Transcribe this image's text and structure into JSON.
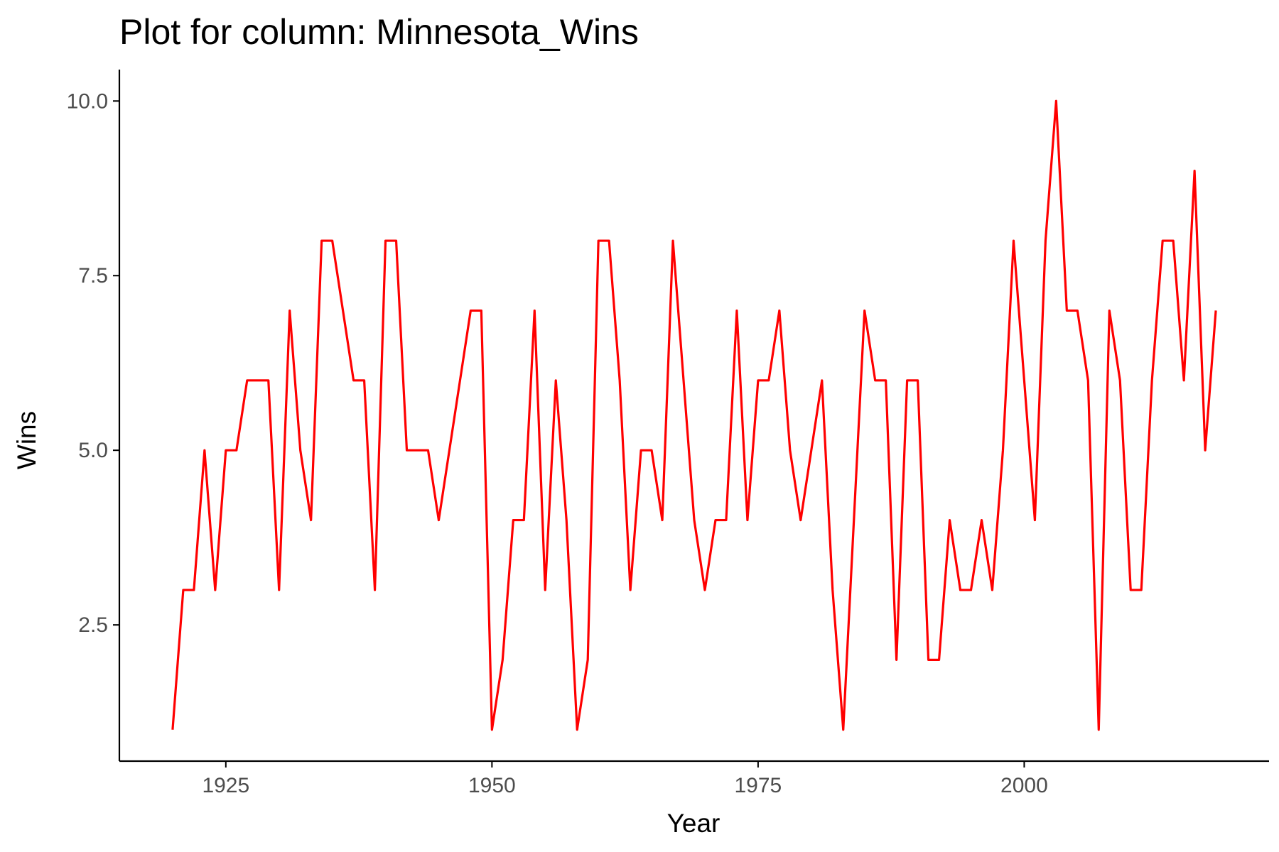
{
  "chart_data": {
    "type": "line",
    "title": "Plot for column:  Minnesota_Wins",
    "xlabel": "Year",
    "ylabel": "Wins",
    "xlim": [
      1915,
      2023
    ],
    "ylim": [
      0.55,
      10.45
    ],
    "x_ticks": [
      1925,
      1950,
      1975,
      2000
    ],
    "x_tick_labels": [
      "1925",
      "1950",
      "1975",
      "2000"
    ],
    "y_ticks": [
      2.5,
      5.0,
      7.5,
      10.0
    ],
    "y_tick_labels": [
      "2.5",
      "5.0",
      "7.5",
      "10.0"
    ],
    "grid": false,
    "legend": "none",
    "series": [
      {
        "color": "#ff0000",
        "x": [
          1920,
          1921,
          1922,
          1923,
          1924,
          1925,
          1926,
          1927,
          1928,
          1929,
          1930,
          1931,
          1932,
          1933,
          1934,
          1935,
          1936,
          1937,
          1938,
          1939,
          1940,
          1941,
          1942,
          1943,
          1944,
          1945,
          1946,
          1947,
          1948,
          1949,
          1950,
          1951,
          1952,
          1953,
          1954,
          1955,
          1956,
          1957,
          1958,
          1959,
          1960,
          1961,
          1962,
          1963,
          1964,
          1965,
          1966,
          1967,
          1968,
          1969,
          1970,
          1971,
          1972,
          1973,
          1974,
          1975,
          1976,
          1977,
          1978,
          1979,
          1980,
          1981,
          1982,
          1983,
          1984,
          1985,
          1986,
          1987,
          1988,
          1989,
          1990,
          1991,
          1992,
          1993,
          1994,
          1995,
          1996,
          1997,
          1998,
          1999,
          2000,
          2001,
          2002,
          2003,
          2004,
          2005,
          2006,
          2007,
          2008,
          2009,
          2010,
          2011,
          2012,
          2013,
          2014,
          2015,
          2016,
          2017,
          2018
        ],
        "y": [
          1,
          3,
          3,
          5,
          3,
          5,
          5,
          6,
          6,
          6,
          3,
          7,
          5,
          4,
          8,
          8,
          7,
          6,
          6,
          3,
          8,
          8,
          5,
          5,
          5,
          4,
          5,
          6,
          7,
          7,
          1,
          2,
          4,
          4,
          7,
          3,
          6,
          4,
          1,
          2,
          8,
          8,
          6,
          3,
          5,
          5,
          4,
          8,
          6,
          4,
          3,
          4,
          4,
          7,
          4,
          6,
          6,
          7,
          5,
          4,
          5,
          6,
          3,
          1,
          4,
          7,
          6,
          6,
          2,
          6,
          6,
          2,
          2,
          4,
          3,
          3,
          4,
          3,
          5,
          8,
          6,
          4,
          8,
          10,
          7,
          7,
          6,
          1,
          7,
          6,
          3,
          3,
          6,
          8,
          8,
          6,
          9,
          5,
          7
        ]
      }
    ]
  },
  "style": {
    "line_color": "#ff0000",
    "axis_color": "#000000",
    "tick_label_color": "#4d4d4d",
    "background": "#ffffff"
  }
}
